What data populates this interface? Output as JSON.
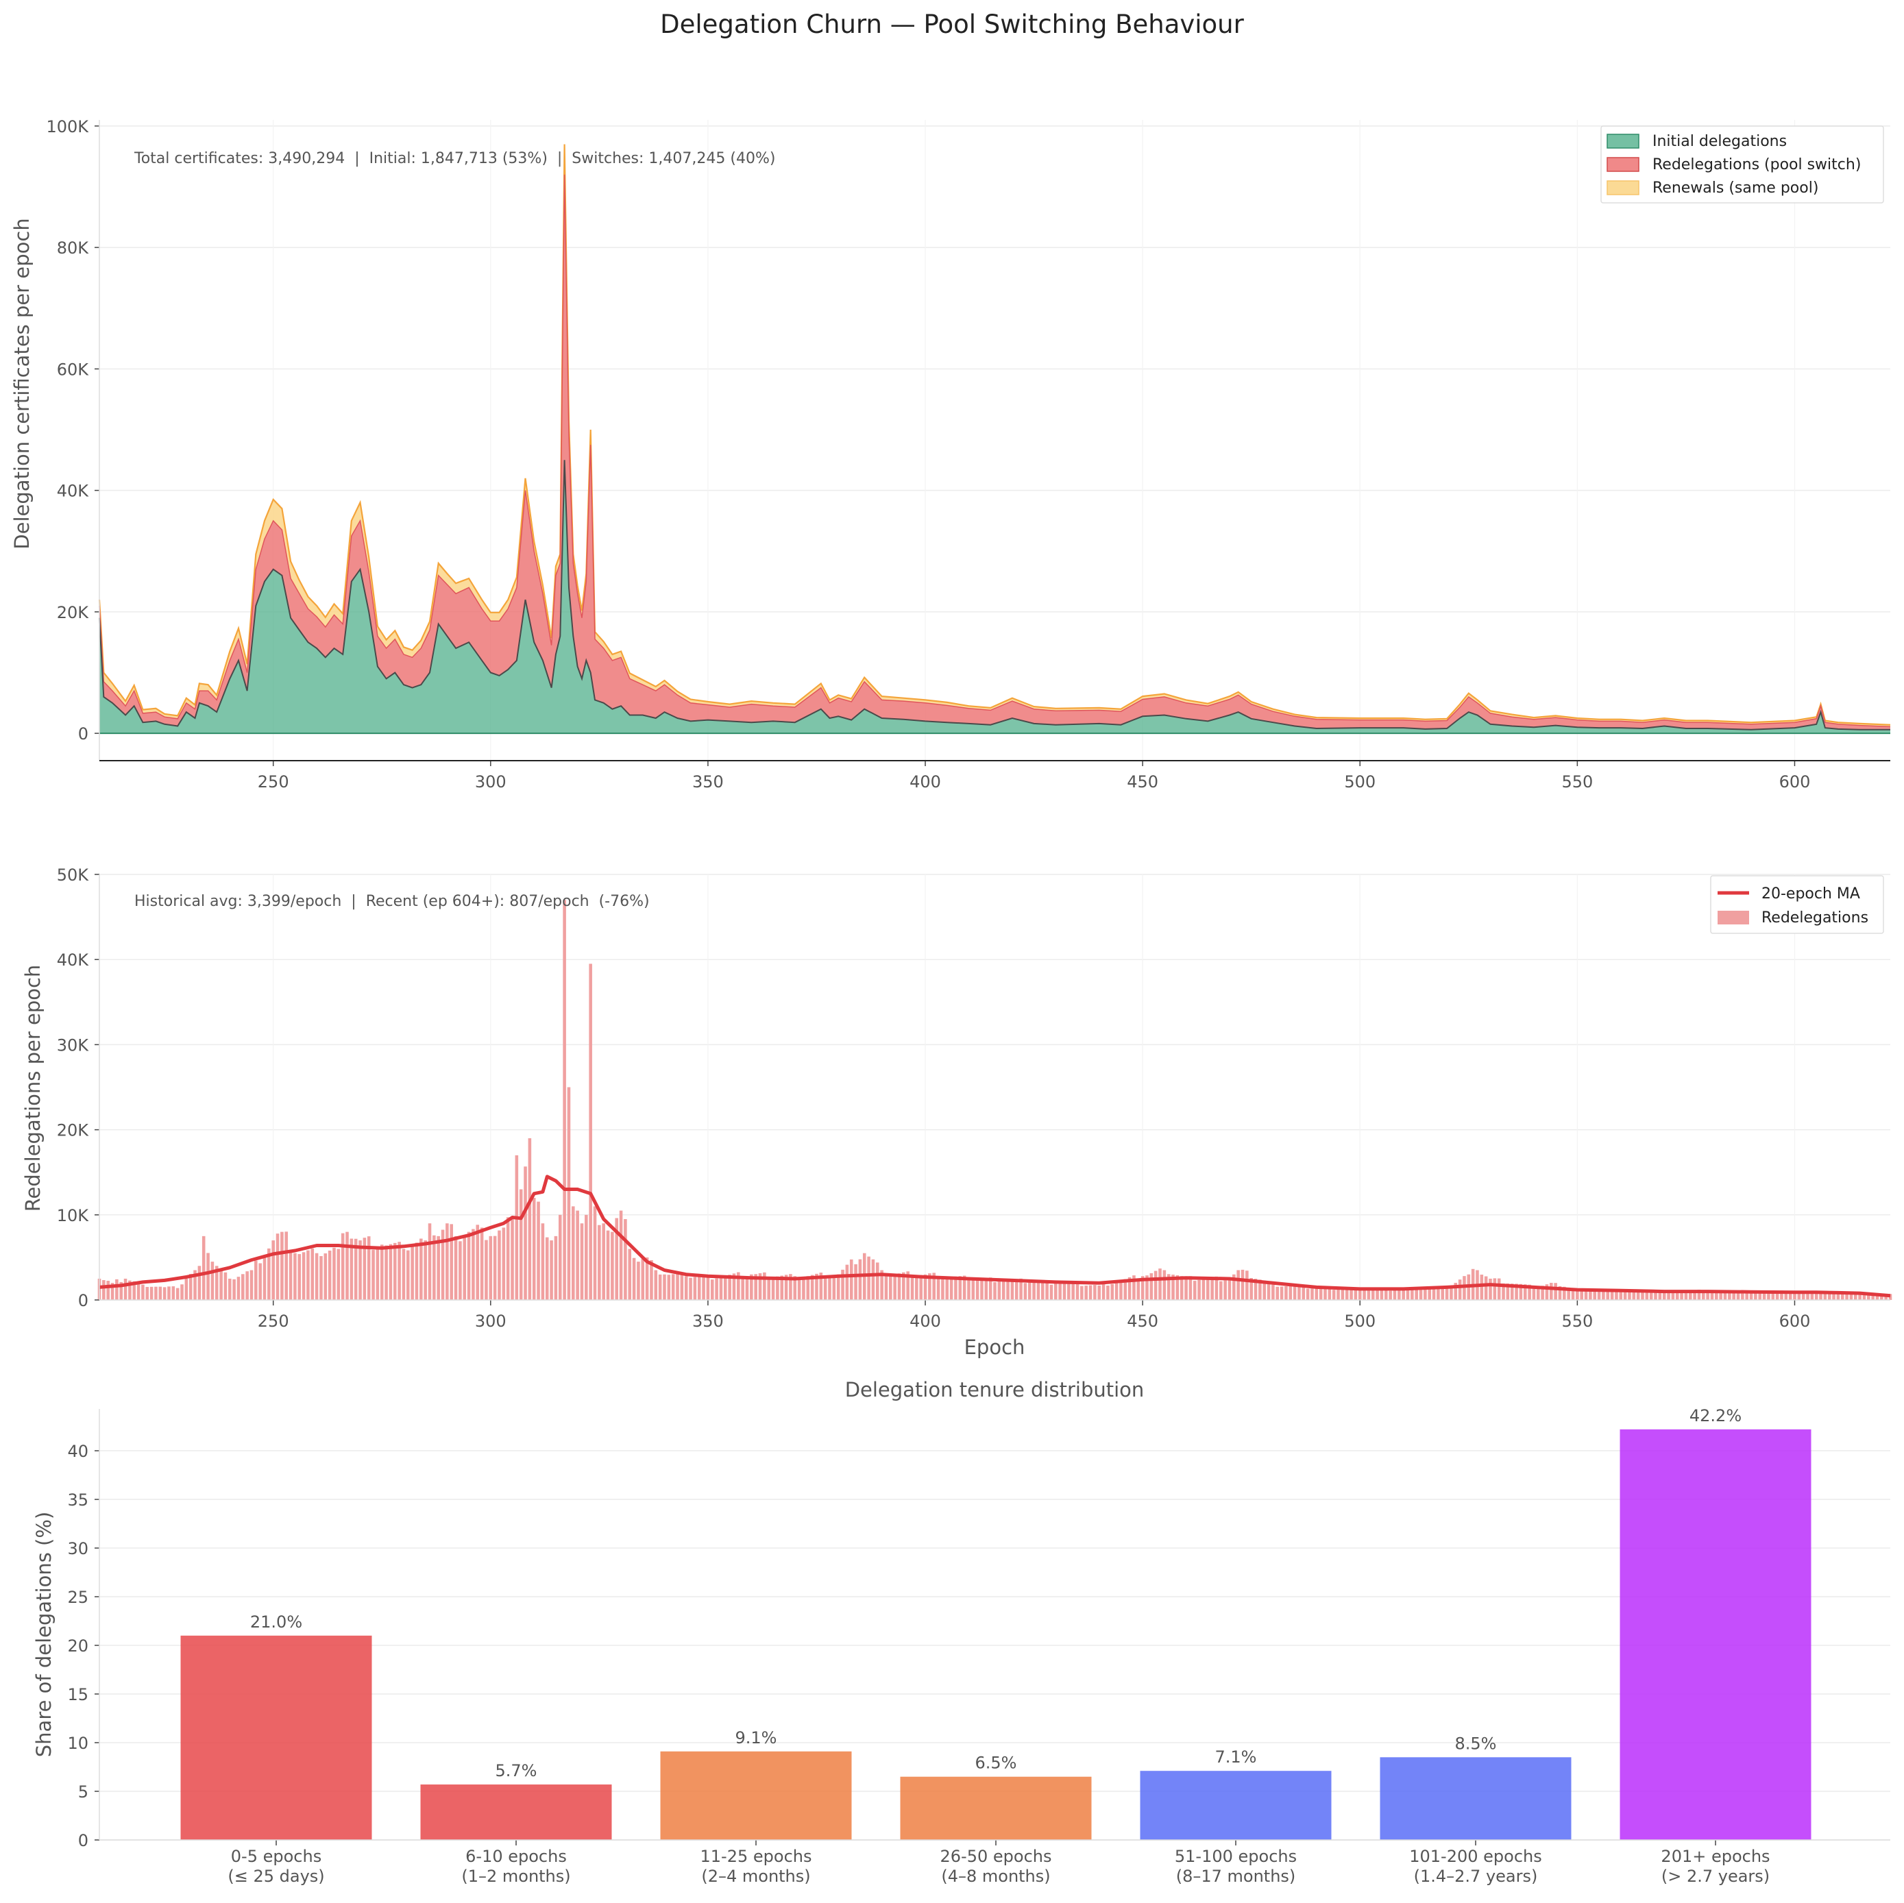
{
  "figure": {
    "title": "Delegation Churn — Pool Switching Behaviour"
  },
  "colors": {
    "initial": "#52b08c",
    "redelegation": "#ec6b6b",
    "renewal": "#fbd68a",
    "renewal_edge": "#f4a43a",
    "ma_line": "#e0393e",
    "bar_red": "#e8494b",
    "bar_orange": "#ee8044",
    "bar_blue": "#5a6ef7",
    "bar_purple": "#bb2ffb",
    "text": "#555555",
    "grid": "#ececec"
  },
  "chart_data": [
    {
      "type": "area",
      "stacked": true,
      "ylabel": "Delegation certificates per epoch",
      "xlim": [
        210,
        622
      ],
      "ylim": [
        -4500,
        101000
      ],
      "xticks": [
        250,
        300,
        350,
        400,
        450,
        500,
        550,
        600
      ],
      "yticks": [
        0,
        20000,
        40000,
        60000,
        80000,
        100000
      ],
      "ytick_labels": [
        "0",
        "20K",
        "40K",
        "60K",
        "80K",
        "100K"
      ],
      "grid": true,
      "legend_position": "top-right",
      "annotation": "Total certificates: 3,490,294  |  Initial: 1,847,713 (53%)  |  Switches: 1,407,245 (40%)",
      "x_keypoints": [
        210,
        211,
        213,
        216,
        218,
        220,
        223,
        225,
        228,
        230,
        232,
        233,
        235,
        237,
        240,
        242,
        244,
        246,
        248,
        250,
        252,
        254,
        256,
        258,
        260,
        262,
        264,
        266,
        268,
        270,
        272,
        274,
        276,
        278,
        280,
        282,
        284,
        286,
        288,
        290,
        292,
        295,
        298,
        300,
        302,
        304,
        306,
        308,
        310,
        312,
        314,
        315,
        316,
        317,
        318,
        319,
        320,
        321,
        322,
        323,
        324,
        326,
        328,
        330,
        332,
        335,
        338,
        340,
        343,
        346,
        350,
        355,
        360,
        365,
        370,
        376,
        378,
        380,
        383,
        386,
        390,
        395,
        400,
        405,
        410,
        415,
        420,
        425,
        430,
        440,
        445,
        450,
        455,
        460,
        465,
        470,
        472,
        475,
        480,
        485,
        490,
        500,
        510,
        515,
        520,
        523,
        525,
        527,
        530,
        535,
        540,
        545,
        550,
        555,
        560,
        565,
        570,
        575,
        580,
        590,
        600,
        605,
        606,
        607,
        610,
        615,
        622
      ],
      "series": [
        {
          "name": "Initial delegations",
          "values": [
            19000,
            6000,
            5000,
            3000,
            4500,
            1800,
            2000,
            1500,
            1200,
            3500,
            2500,
            5000,
            4500,
            3500,
            9000,
            12000,
            7000,
            21000,
            25000,
            27000,
            26000,
            19000,
            17000,
            15000,
            14000,
            12500,
            14000,
            13000,
            25000,
            27000,
            20000,
            11000,
            9000,
            10000,
            8000,
            7500,
            8000,
            10000,
            18000,
            16000,
            14000,
            15000,
            12000,
            10000,
            9500,
            10500,
            12000,
            22000,
            15000,
            12000,
            7500,
            13000,
            16000,
            45000,
            24000,
            16000,
            11000,
            9000,
            12000,
            10000,
            5500,
            5000,
            4000,
            4500,
            3000,
            3000,
            2500,
            3500,
            2500,
            2000,
            2200,
            2000,
            1800,
            2000,
            1800,
            4000,
            2500,
            2800,
            2200,
            4000,
            2500,
            2300,
            2000,
            1800,
            1600,
            1400,
            2500,
            1600,
            1400,
            1600,
            1400,
            2800,
            3000,
            2400,
            2000,
            3000,
            3500,
            2400,
            1800,
            1200,
            800,
            900,
            900,
            700,
            800,
            2500,
            3500,
            3000,
            1500,
            1200,
            1000,
            1300,
            1000,
            900,
            900,
            800,
            1200,
            800,
            800,
            600,
            900,
            1500,
            3500,
            900,
            700,
            600,
            600
          ]
        },
        {
          "name": "Redelegations (pool switch)",
          "values": [
            2000,
            2500,
            2000,
            1500,
            2500,
            1500,
            1500,
            1200,
            1200,
            1500,
            1500,
            2000,
            2500,
            2000,
            3000,
            3500,
            3000,
            6000,
            7000,
            8000,
            7500,
            6500,
            6000,
            5500,
            5200,
            5000,
            5500,
            5000,
            7500,
            8000,
            6500,
            5000,
            5000,
            5500,
            5000,
            5000,
            6000,
            7000,
            8000,
            8500,
            9000,
            9000,
            8500,
            8500,
            9000,
            10000,
            12000,
            18000,
            15000,
            11000,
            7000,
            13000,
            12000,
            47000,
            25000,
            12000,
            12000,
            10000,
            13000,
            37500,
            10000,
            9000,
            8000,
            8000,
            6000,
            5000,
            4500,
            4500,
            3800,
            3000,
            2500,
            2300,
            3000,
            2500,
            2500,
            3500,
            2500,
            3000,
            3000,
            4500,
            3000,
            3000,
            3000,
            2800,
            2500,
            2400,
            2800,
            2400,
            2300,
            2200,
            2200,
            2800,
            3000,
            2600,
            2500,
            2600,
            2800,
            2400,
            1800,
            1600,
            1500,
            1300,
            1300,
            1300,
            1300,
            1800,
            2500,
            2000,
            1800,
            1500,
            1300,
            1300,
            1200,
            1100,
            1100,
            1000,
            1000,
            1000,
            1000,
            900,
            900,
            900,
            1000,
            900,
            800,
            700,
            500
          ]
        },
        {
          "name": "Renewals (same pool)",
          "values": [
            1000,
            1500,
            1200,
            800,
            900,
            600,
            600,
            500,
            500,
            800,
            700,
            1200,
            1000,
            800,
            1500,
            1800,
            1400,
            2500,
            3000,
            3500,
            3500,
            2800,
            2200,
            2000,
            1800,
            1600,
            1800,
            1700,
            2500,
            3000,
            2500,
            1600,
            1400,
            1400,
            1200,
            1200,
            1300,
            1400,
            2000,
            1800,
            1700,
            1500,
            1500,
            1400,
            1400,
            1500,
            1700,
            2000,
            1600,
            1400,
            1200,
            1500,
            1500,
            5000,
            2500,
            1500,
            1300,
            1200,
            1300,
            2500,
            1200,
            1100,
            1000,
            1000,
            900,
            800,
            700,
            700,
            600,
            600,
            500,
            500,
            500,
            500,
            500,
            700,
            500,
            500,
            500,
            700,
            600,
            500,
            500,
            500,
            400,
            400,
            500,
            400,
            400,
            400,
            400,
            500,
            500,
            500,
            400,
            500,
            500,
            400,
            400,
            300,
            300,
            300,
            300,
            300,
            300,
            500,
            600,
            500,
            400,
            400,
            300,
            300,
            300,
            300,
            300,
            300,
            300,
            300,
            300,
            300,
            300,
            300,
            300,
            300,
            300,
            300,
            300
          ]
        }
      ]
    },
    {
      "type": "bar",
      "overlay": "line",
      "ylabel": "Redelegations per epoch",
      "xlabel": "Epoch",
      "xlim": [
        210,
        622
      ],
      "ylim": [
        0,
        50000
      ],
      "xticks": [
        250,
        300,
        350,
        400,
        450,
        500,
        550,
        600
      ],
      "yticks": [
        0,
        10000,
        20000,
        30000,
        40000,
        50000
      ],
      "ytick_labels": [
        "0",
        "10K",
        "20K",
        "30K",
        "40K",
        "50K"
      ],
      "grid": true,
      "legend_position": "top-right",
      "annotation": "Historical avg: 3,399/epoch  |  Recent (ep 604+): 807/epoch  (-76%)",
      "bar_keypoints": {
        "x": [
          210,
          213,
          216,
          220,
          225,
          228,
          230,
          232,
          233,
          234,
          236,
          238,
          240,
          245,
          250,
          252,
          255,
          260,
          265,
          267,
          270,
          275,
          280,
          285,
          286,
          288,
          290,
          292,
          295,
          298,
          300,
          303,
          305,
          306,
          307,
          309,
          310,
          312,
          314,
          315,
          316,
          317,
          318,
          319,
          320,
          321,
          322,
          323,
          324,
          326,
          328,
          330,
          331,
          332,
          334,
          336,
          338,
          340,
          345,
          350,
          360,
          370,
          380,
          386,
          390,
          393,
          400,
          410,
          420,
          430,
          440,
          450,
          455,
          460,
          470,
          472,
          480,
          490,
          500,
          510,
          520,
          525,
          527,
          530,
          540,
          545,
          550,
          560,
          570,
          580,
          590,
          600,
          610,
          622
        ],
        "y": [
          2500,
          2000,
          2500,
          1800,
          1500,
          1400,
          2500,
          3500,
          4000,
          7500,
          4500,
          3500,
          2500,
          3500,
          7000,
          8000,
          5500,
          5500,
          6000,
          8000,
          7000,
          6500,
          6000,
          7000,
          9000,
          7500,
          9000,
          7500,
          8000,
          8500,
          7500,
          8500,
          9500,
          17000,
          13000,
          19000,
          12000,
          9000,
          7000,
          7500,
          10000,
          47000,
          25000,
          11000,
          10500,
          9000,
          10000,
          39500,
          11000,
          9000,
          8000,
          10500,
          9500,
          6000,
          4500,
          5000,
          3500,
          3000,
          2800,
          2700,
          3000,
          2800,
          3000,
          5500,
          3500,
          3000,
          3000,
          2500,
          2300,
          2000,
          1700,
          2800,
          3500,
          2500,
          2500,
          3500,
          1800,
          1400,
          1300,
          1200,
          1500,
          3000,
          3500,
          2500,
          1500,
          2000,
          1200,
          1100,
          1000,
          1100,
          1000,
          1000,
          900,
          700
        ]
      },
      "series": [
        {
          "name": "20-epoch MA",
          "type": "line",
          "x": [
            210,
            215,
            220,
            225,
            230,
            235,
            240,
            245,
            250,
            255,
            260,
            265,
            270,
            275,
            280,
            285,
            290,
            295,
            300,
            303,
            305,
            307,
            310,
            312,
            313,
            315,
            317,
            320,
            323,
            326,
            328,
            330,
            333,
            336,
            340,
            345,
            350,
            360,
            370,
            380,
            390,
            400,
            410,
            420,
            430,
            440,
            450,
            460,
            470,
            480,
            490,
            500,
            510,
            520,
            530,
            540,
            550,
            560,
            570,
            580,
            590,
            600,
            605,
            610,
            615,
            622
          ],
          "values": [
            1500,
            1700,
            2100,
            2300,
            2700,
            3200,
            3800,
            4700,
            5400,
            5800,
            6400,
            6400,
            6200,
            6100,
            6300,
            6600,
            7000,
            7600,
            8500,
            9000,
            9700,
            9600,
            12500,
            12700,
            14500,
            14000,
            13000,
            13000,
            12500,
            9500,
            8500,
            7500,
            6000,
            4500,
            3500,
            3000,
            2800,
            2600,
            2500,
            2800,
            3000,
            2700,
            2500,
            2300,
            2100,
            2000,
            2400,
            2600,
            2500,
            2000,
            1500,
            1300,
            1300,
            1500,
            1800,
            1500,
            1200,
            1100,
            1000,
            1000,
            950,
            900,
            900,
            850,
            800,
            500
          ]
        },
        {
          "name": "Redelegations",
          "type": "bar"
        }
      ]
    },
    {
      "type": "bar",
      "title": "Delegation tenure distribution",
      "ylabel": "Share of delegations (%)",
      "ylim": [
        0,
        44.3
      ],
      "yticks": [
        0,
        5,
        10,
        15,
        20,
        25,
        30,
        35,
        40
      ],
      "grid": true,
      "categories": [
        [
          "0-5 epochs",
          "(≤ 25 days)"
        ],
        [
          "6-10 epochs",
          "(1–2 months)"
        ],
        [
          "11-25 epochs",
          "(2–4 months)"
        ],
        [
          "26-50 epochs",
          "(4–8 months)"
        ],
        [
          "51-100 epochs",
          "(8–17 months)"
        ],
        [
          "101-200 epochs",
          "(1.4–2.7 years)"
        ],
        [
          "201+ epochs",
          "(> 2.7 years)"
        ]
      ],
      "values": [
        21.0,
        5.7,
        9.1,
        6.5,
        7.1,
        8.5,
        42.2
      ],
      "value_labels": [
        "21.0%",
        "5.7%",
        "9.1%",
        "6.5%",
        "7.1%",
        "8.5%",
        "42.2%"
      ],
      "bar_colors": [
        "#e8494b",
        "#e8494b",
        "#ee8044",
        "#ee8044",
        "#5a6ef7",
        "#5a6ef7",
        "#bb2ffb"
      ]
    }
  ]
}
